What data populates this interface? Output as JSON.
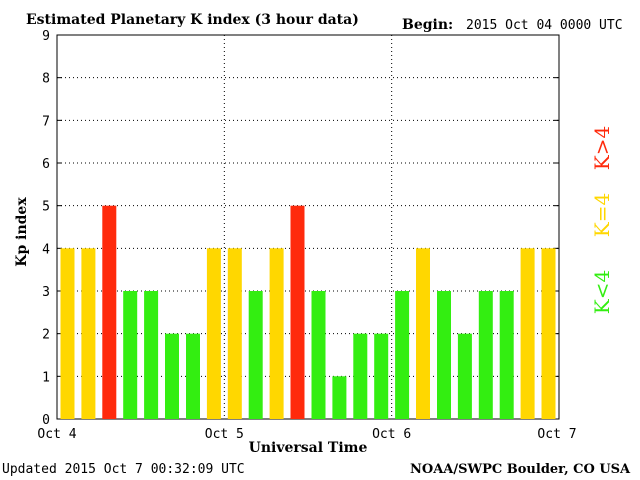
{
  "header": {
    "title": "Estimated Planetary K index (3 hour data)",
    "begin_label": "Begin:",
    "begin_value": "2015 Oct 04 0000 UTC"
  },
  "footer": {
    "updated": "Updated 2015 Oct  7 00:32:09 UTC",
    "source": "NOAA/SWPC Boulder, CO USA"
  },
  "colors": {
    "low": "#33ee11",
    "mid": "#ffd700",
    "high": "#ff2a0c"
  },
  "legend": {
    "high": "K>4",
    "mid": "K=4",
    "low": "K<4"
  },
  "chart_data": {
    "type": "bar",
    "title": "Estimated Planetary K index (3 hour data)",
    "xlabel": "Universal Time",
    "ylabel": "Kp index",
    "ylim": [
      0,
      9
    ],
    "yticks": [
      "0",
      "1",
      "2",
      "3",
      "4",
      "5",
      "6",
      "7",
      "8",
      "9"
    ],
    "x_tick_labels": [
      "Oct 4",
      "Oct 5",
      "Oct 6",
      "Oct 7"
    ],
    "grid": true,
    "values": [
      4,
      4,
      5,
      3,
      3,
      2,
      2,
      4,
      4,
      3,
      4,
      5,
      3,
      1,
      2,
      2,
      3,
      4,
      3,
      2,
      3,
      3,
      4,
      4
    ]
  }
}
